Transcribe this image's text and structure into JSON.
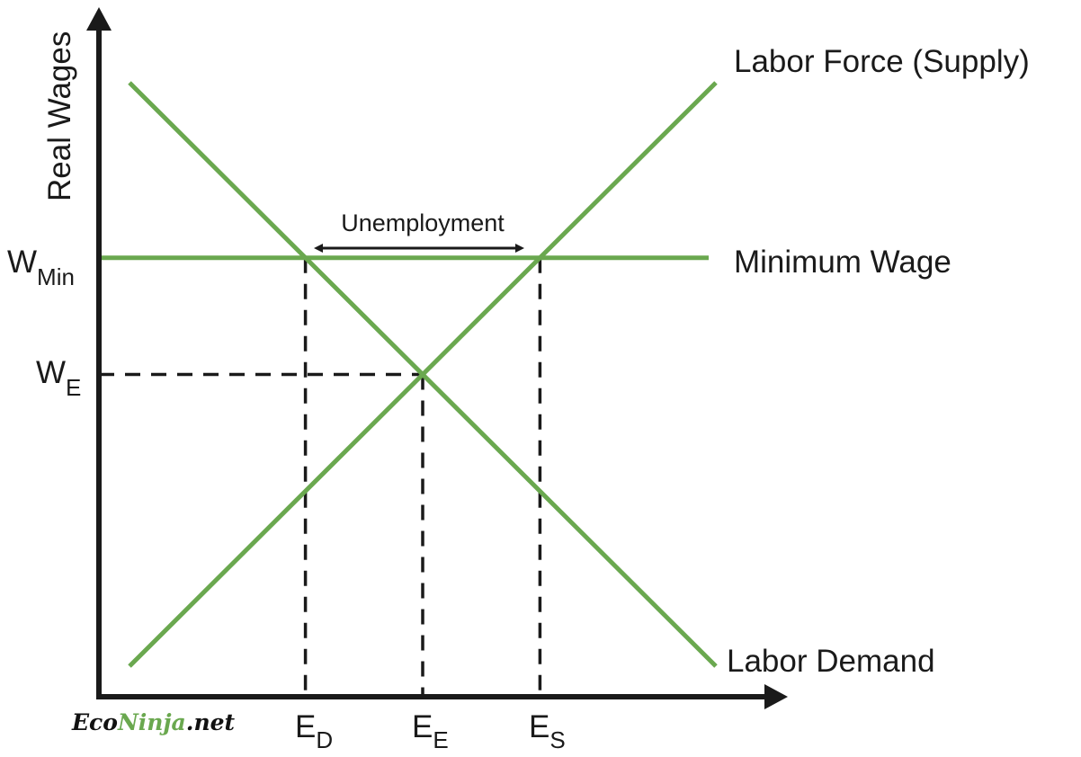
{
  "chart_data": {
    "type": "line",
    "title": "",
    "ylabel": "Real Wages",
    "xlabel": "",
    "colors": {
      "curves": "#6aa84f",
      "axes": "#1a1a1a",
      "brand_accent": "#6aa84f"
    },
    "series": [
      {
        "name": "Labor Force (Supply)",
        "x": [
          0,
          10
        ],
        "y": [
          0,
          10
        ]
      },
      {
        "name": "Labor Demand",
        "x": [
          0,
          10
        ],
        "y": [
          10,
          0
        ]
      },
      {
        "name": "Minimum Wage",
        "x": [
          0,
          10
        ],
        "y": [
          7,
          7
        ]
      }
    ],
    "points": {
      "E_D": {
        "x": 3,
        "y": 7
      },
      "E_E": {
        "x": 5,
        "y": 5
      },
      "E_S": {
        "x": 7,
        "y": 7
      }
    },
    "y_ticks": [
      {
        "main": "W",
        "sub": "Min"
      },
      {
        "main": "W",
        "sub": "E"
      }
    ],
    "x_ticks": [
      {
        "main": "E",
        "sub": "D"
      },
      {
        "main": "E",
        "sub": "E"
      },
      {
        "main": "E",
        "sub": "S"
      }
    ],
    "annotation": "Unemployment",
    "brand": {
      "part1": "Eco",
      "part2": "Ninja",
      "part3": ".net"
    }
  }
}
